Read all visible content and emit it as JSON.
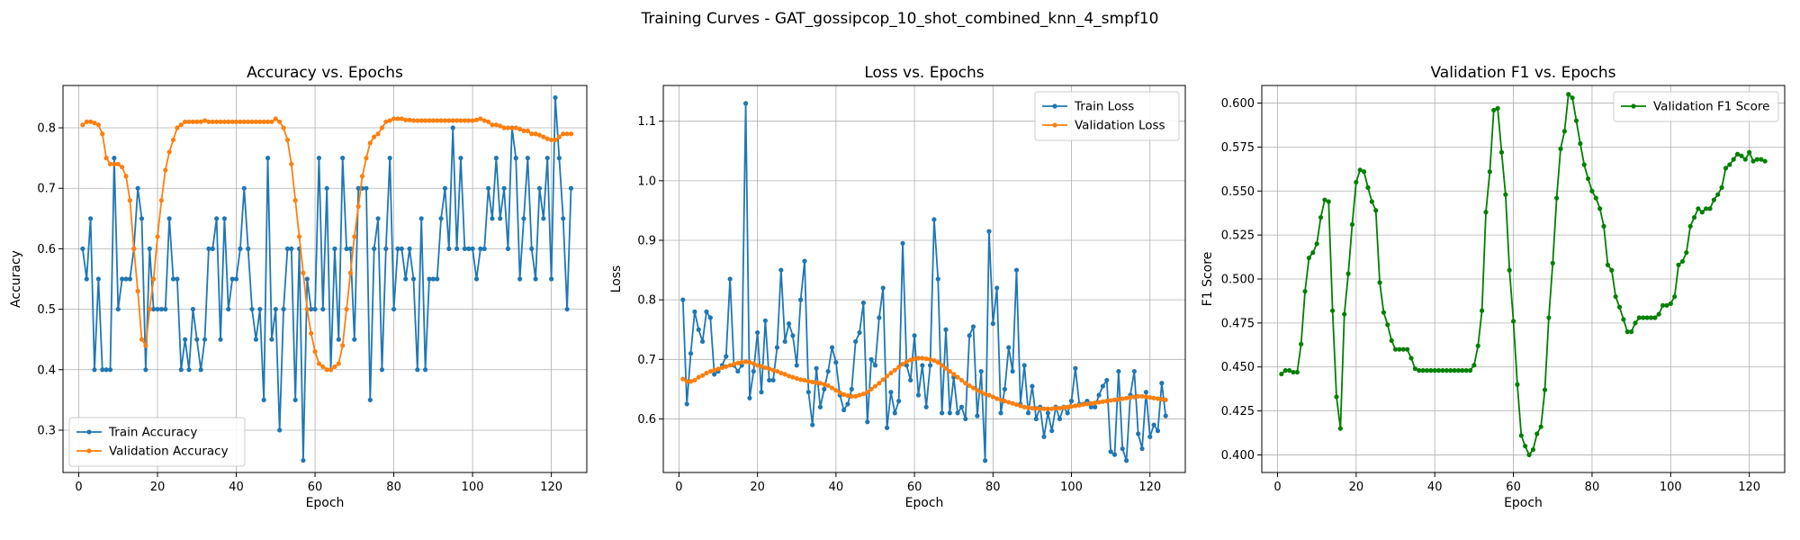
{
  "figure_title": "Training Curves - GAT_gossipcop_10_shot_combined_knn_4_smpf10",
  "colors": {
    "train": "#1f77b4",
    "validation": "#ff7f0e",
    "f1": "#008000"
  },
  "chart_data": [
    {
      "type": "line",
      "title": "Accuracy vs. Epochs",
      "xlabel": "Epoch",
      "ylabel": "Accuracy",
      "xlim": [
        -4,
        129
      ],
      "ylim": [
        0.23,
        0.87
      ],
      "xticks": [
        0,
        20,
        40,
        60,
        80,
        100,
        120
      ],
      "yticks": [
        0.3,
        0.4,
        0.5,
        0.6,
        0.7,
        0.8
      ],
      "grid": true,
      "legend_position": "lower-left",
      "series": [
        {
          "name": "Train Accuracy",
          "color": "#1f77b4",
          "x_start": 1,
          "values": [
            0.6,
            0.55,
            0.65,
            0.4,
            0.55,
            0.4,
            0.4,
            0.4,
            0.75,
            0.5,
            0.55,
            0.55,
            0.55,
            0.6,
            0.7,
            0.65,
            0.4,
            0.6,
            0.5,
            0.5,
            0.5,
            0.5,
            0.65,
            0.55,
            0.55,
            0.4,
            0.45,
            0.4,
            0.5,
            0.45,
            0.4,
            0.45,
            0.6,
            0.6,
            0.65,
            0.45,
            0.65,
            0.5,
            0.55,
            0.55,
            0.6,
            0.7,
            0.6,
            0.5,
            0.45,
            0.5,
            0.35,
            0.75,
            0.45,
            0.5,
            0.3,
            0.5,
            0.6,
            0.6,
            0.35,
            0.6,
            0.25,
            0.55,
            0.5,
            0.5,
            0.75,
            0.5,
            0.7,
            0.4,
            0.6,
            0.45,
            0.75,
            0.6,
            0.6,
            0.45,
            0.7,
            0.7,
            0.7,
            0.35,
            0.6,
            0.65,
            0.4,
            0.6,
            0.75,
            0.5,
            0.6,
            0.6,
            0.55,
            0.6,
            0.55,
            0.4,
            0.65,
            0.4,
            0.55,
            0.55,
            0.55,
            0.65,
            0.7,
            0.6,
            0.8,
            0.6,
            0.75,
            0.6,
            0.6,
            0.6,
            0.55,
            0.6,
            0.6,
            0.7,
            0.65,
            0.75,
            0.65,
            0.7,
            0.6,
            0.8,
            0.75,
            0.55,
            0.65,
            0.75,
            0.6,
            0.55,
            0.7,
            0.65,
            0.75,
            0.55,
            0.85,
            0.75,
            0.65,
            0.5,
            0.7
          ]
        },
        {
          "name": "Validation Accuracy",
          "color": "#ff7f0e",
          "x_start": 1,
          "values": [
            0.805,
            0.81,
            0.81,
            0.808,
            0.805,
            0.79,
            0.75,
            0.74,
            0.74,
            0.74,
            0.735,
            0.72,
            0.68,
            0.6,
            0.53,
            0.45,
            0.44,
            0.5,
            0.55,
            0.62,
            0.68,
            0.73,
            0.76,
            0.78,
            0.8,
            0.805,
            0.81,
            0.81,
            0.81,
            0.81,
            0.81,
            0.812,
            0.81,
            0.81,
            0.81,
            0.81,
            0.81,
            0.81,
            0.81,
            0.81,
            0.81,
            0.81,
            0.81,
            0.81,
            0.81,
            0.81,
            0.81,
            0.81,
            0.81,
            0.815,
            0.81,
            0.8,
            0.78,
            0.74,
            0.68,
            0.62,
            0.56,
            0.5,
            0.46,
            0.43,
            0.41,
            0.405,
            0.4,
            0.4,
            0.405,
            0.41,
            0.44,
            0.5,
            0.56,
            0.62,
            0.67,
            0.72,
            0.75,
            0.775,
            0.785,
            0.79,
            0.8,
            0.81,
            0.812,
            0.815,
            0.815,
            0.815,
            0.813,
            0.813,
            0.812,
            0.812,
            0.812,
            0.812,
            0.812,
            0.812,
            0.812,
            0.812,
            0.812,
            0.812,
            0.812,
            0.812,
            0.812,
            0.812,
            0.812,
            0.812,
            0.813,
            0.815,
            0.812,
            0.81,
            0.805,
            0.805,
            0.803,
            0.8,
            0.8,
            0.8,
            0.8,
            0.798,
            0.795,
            0.795,
            0.79,
            0.79,
            0.788,
            0.785,
            0.782,
            0.78,
            0.78,
            0.785,
            0.79,
            0.79,
            0.79
          ]
        }
      ]
    },
    {
      "type": "line",
      "title": "Loss vs. Epochs",
      "xlabel": "Epoch",
      "ylabel": "Loss",
      "xlim": [
        -4,
        129
      ],
      "ylim": [
        0.51,
        1.16
      ],
      "xticks": [
        0,
        20,
        40,
        60,
        80,
        100,
        120
      ],
      "yticks": [
        0.6,
        0.7,
        0.8,
        0.9,
        1.0,
        1.1
      ],
      "grid": true,
      "legend_position": "upper-right",
      "series": [
        {
          "name": "Train Loss",
          "color": "#1f77b4",
          "x_start": 1,
          "values": [
            0.8,
            0.625,
            0.71,
            0.78,
            0.75,
            0.73,
            0.78,
            0.77,
            0.675,
            0.68,
            0.69,
            0.705,
            0.835,
            0.69,
            0.68,
            0.69,
            1.13,
            0.635,
            0.68,
            0.745,
            0.645,
            0.765,
            0.665,
            0.665,
            0.72,
            0.85,
            0.73,
            0.76,
            0.74,
            0.69,
            0.8,
            0.865,
            0.645,
            0.59,
            0.685,
            0.62,
            0.65,
            0.68,
            0.72,
            0.695,
            0.64,
            0.615,
            0.625,
            0.65,
            0.73,
            0.745,
            0.795,
            0.595,
            0.7,
            0.69,
            0.77,
            0.82,
            0.585,
            0.645,
            0.61,
            0.63,
            0.895,
            0.69,
            0.665,
            0.74,
            0.64,
            0.69,
            0.62,
            0.69,
            0.935,
            0.835,
            0.61,
            0.75,
            0.61,
            0.67,
            0.61,
            0.62,
            0.6,
            0.74,
            0.755,
            0.605,
            0.68,
            0.53,
            0.915,
            0.76,
            0.82,
            0.61,
            0.65,
            0.72,
            0.68,
            0.85,
            0.625,
            0.69,
            0.61,
            0.655,
            0.6,
            0.62,
            0.57,
            0.61,
            0.58,
            0.62,
            0.6,
            0.62,
            0.61,
            0.63,
            0.685,
            0.625,
            0.625,
            0.63,
            0.62,
            0.62,
            0.64,
            0.655,
            0.665,
            0.545,
            0.54,
            0.68,
            0.55,
            0.53,
            0.64,
            0.68,
            0.575,
            0.55,
            0.645,
            0.57,
            0.59,
            0.58,
            0.66,
            0.605
          ]
        },
        {
          "name": "Validation Loss",
          "color": "#ff7f0e",
          "x_start": 1,
          "values": [
            0.667,
            0.663,
            0.663,
            0.665,
            0.67,
            0.673,
            0.677,
            0.68,
            0.682,
            0.684,
            0.686,
            0.688,
            0.69,
            0.692,
            0.694,
            0.695,
            0.696,
            0.695,
            0.693,
            0.69,
            0.688,
            0.686,
            0.684,
            0.682,
            0.68,
            0.677,
            0.675,
            0.672,
            0.67,
            0.668,
            0.666,
            0.665,
            0.663,
            0.662,
            0.661,
            0.66,
            0.658,
            0.656,
            0.652,
            0.648,
            0.644,
            0.641,
            0.639,
            0.638,
            0.638,
            0.64,
            0.642,
            0.645,
            0.65,
            0.655,
            0.66,
            0.666,
            0.672,
            0.677,
            0.682,
            0.687,
            0.692,
            0.696,
            0.699,
            0.701,
            0.702,
            0.702,
            0.701,
            0.7,
            0.698,
            0.695,
            0.69,
            0.685,
            0.68,
            0.675,
            0.67,
            0.665,
            0.66,
            0.656,
            0.652,
            0.648,
            0.645,
            0.642,
            0.64,
            0.637,
            0.634,
            0.632,
            0.63,
            0.628,
            0.626,
            0.624,
            0.622,
            0.62,
            0.619,
            0.618,
            0.618,
            0.617,
            0.617,
            0.617,
            0.617,
            0.618,
            0.618,
            0.619,
            0.62,
            0.621,
            0.622,
            0.623,
            0.624,
            0.625,
            0.626,
            0.627,
            0.628,
            0.629,
            0.63,
            0.631,
            0.632,
            0.633,
            0.634,
            0.635,
            0.636,
            0.637,
            0.638,
            0.638,
            0.637,
            0.636,
            0.635,
            0.634,
            0.633,
            0.632
          ]
        }
      ]
    },
    {
      "type": "line",
      "title": "Validation F1 vs. Epochs",
      "xlabel": "Epoch",
      "ylabel": "F1 Score",
      "xlim": [
        -4,
        129
      ],
      "ylim": [
        0.39,
        0.61
      ],
      "xticks": [
        0,
        20,
        40,
        60,
        80,
        100,
        120
      ],
      "yticks": [
        0.4,
        0.425,
        0.45,
        0.475,
        0.5,
        0.525,
        0.55,
        0.575,
        0.6
      ],
      "grid": true,
      "legend_position": "upper-right",
      "series": [
        {
          "name": "Validation F1 Score",
          "color": "#008000",
          "x_start": 1,
          "values": [
            0.446,
            0.448,
            0.448,
            0.447,
            0.447,
            0.463,
            0.493,
            0.512,
            0.515,
            0.52,
            0.535,
            0.545,
            0.544,
            0.482,
            0.433,
            0.415,
            0.48,
            0.503,
            0.531,
            0.555,
            0.562,
            0.561,
            0.552,
            0.544,
            0.539,
            0.498,
            0.481,
            0.474,
            0.465,
            0.46,
            0.46,
            0.46,
            0.46,
            0.455,
            0.449,
            0.448,
            0.448,
            0.448,
            0.448,
            0.448,
            0.448,
            0.448,
            0.448,
            0.448,
            0.448,
            0.448,
            0.448,
            0.448,
            0.448,
            0.451,
            0.462,
            0.482,
            0.538,
            0.561,
            0.596,
            0.597,
            0.572,
            0.548,
            0.505,
            0.476,
            0.44,
            0.411,
            0.405,
            0.4,
            0.403,
            0.412,
            0.416,
            0.437,
            0.478,
            0.509,
            0.546,
            0.574,
            0.584,
            0.605,
            0.603,
            0.59,
            0.577,
            0.565,
            0.557,
            0.55,
            0.546,
            0.54,
            0.53,
            0.508,
            0.505,
            0.49,
            0.484,
            0.477,
            0.47,
            0.47,
            0.475,
            0.478,
            0.478,
            0.478,
            0.478,
            0.478,
            0.48,
            0.485,
            0.485,
            0.486,
            0.49,
            0.508,
            0.51,
            0.515,
            0.53,
            0.535,
            0.54,
            0.538,
            0.54,
            0.54,
            0.545,
            0.548,
            0.552,
            0.563,
            0.565,
            0.568,
            0.571,
            0.57,
            0.568,
            0.572,
            0.567,
            0.568,
            0.568,
            0.567
          ]
        }
      ]
    }
  ]
}
